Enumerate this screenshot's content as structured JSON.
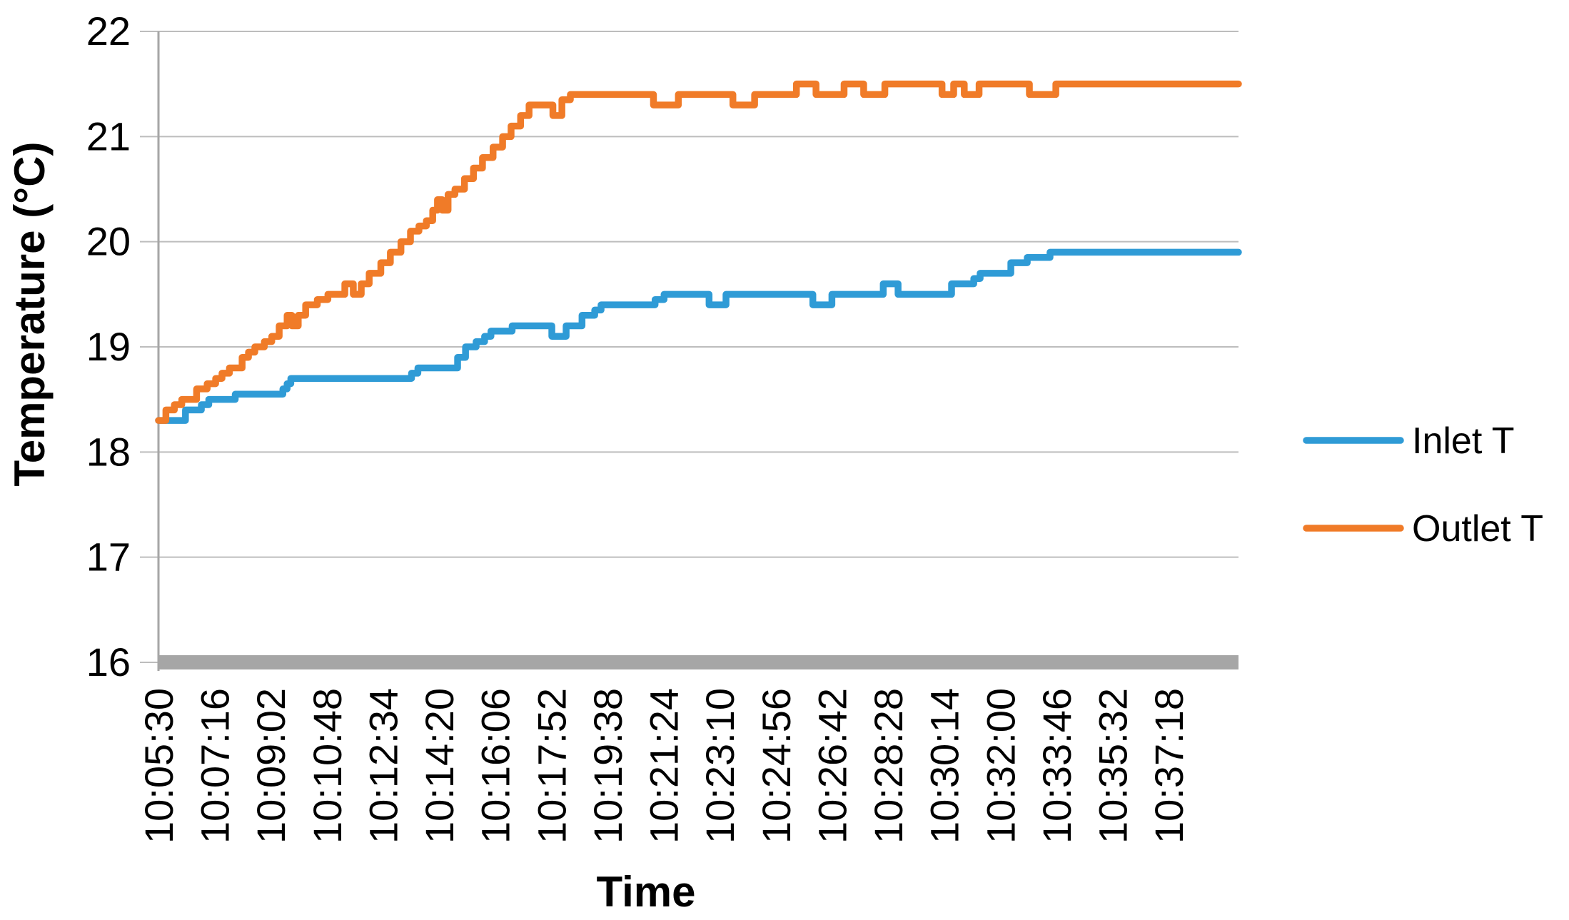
{
  "chart_data": {
    "type": "line",
    "title": "",
    "xlabel": "Time",
    "ylabel": "Temperature (°C)",
    "ylim": [
      16,
      22
    ],
    "y_ticks": [
      22,
      21,
      20,
      19,
      18,
      17,
      16
    ],
    "x_ticks": [
      "10:05:30",
      "10:07:16",
      "10:09:02",
      "10:10:48",
      "10:12:34",
      "10:14:20",
      "10:16:06",
      "10:17:52",
      "10:19:38",
      "10:21:24",
      "10:23:10",
      "10:24:56",
      "10:26:42",
      "10:28:28",
      "10:30:14",
      "10:32:00",
      "10:33:46",
      "10:35:32",
      "10:37:18"
    ],
    "x_tick_interval_seconds": 106,
    "x_start_time": "10:05:30",
    "x_total_seconds": 2040,
    "grid": true,
    "legend_position": "right-middle",
    "line_interpolation": "step-after",
    "series": [
      {
        "name": "Inlet T",
        "color": "#2F9BD6",
        "points": [
          [
            0,
            18.3
          ],
          [
            51,
            18.4
          ],
          [
            81,
            18.45
          ],
          [
            95,
            18.5
          ],
          [
            145,
            18.55
          ],
          [
            235,
            18.6
          ],
          [
            243,
            18.65
          ],
          [
            250,
            18.7
          ],
          [
            478,
            18.75
          ],
          [
            490,
            18.8
          ],
          [
            565,
            18.9
          ],
          [
            580,
            19.0
          ],
          [
            600,
            19.05
          ],
          [
            616,
            19.1
          ],
          [
            628,
            19.15
          ],
          [
            668,
            19.2
          ],
          [
            743,
            19.1
          ],
          [
            770,
            19.2
          ],
          [
            800,
            19.3
          ],
          [
            824,
            19.35
          ],
          [
            836,
            19.4
          ],
          [
            938,
            19.45
          ],
          [
            955,
            19.5
          ],
          [
            1040,
            19.4
          ],
          [
            1072,
            19.5
          ],
          [
            1236,
            19.4
          ],
          [
            1272,
            19.5
          ],
          [
            1369,
            19.6
          ],
          [
            1397,
            19.5
          ],
          [
            1498,
            19.6
          ],
          [
            1540,
            19.65
          ],
          [
            1552,
            19.7
          ],
          [
            1610,
            19.8
          ],
          [
            1641,
            19.85
          ],
          [
            1684,
            19.9
          ],
          [
            2040,
            19.9
          ]
        ]
      },
      {
        "name": "Outlet T",
        "color": "#F07B28",
        "points": [
          [
            0,
            18.3
          ],
          [
            14,
            18.4
          ],
          [
            30,
            18.45
          ],
          [
            44,
            18.5
          ],
          [
            72,
            18.6
          ],
          [
            92,
            18.65
          ],
          [
            108,
            18.7
          ],
          [
            120,
            18.75
          ],
          [
            134,
            18.8
          ],
          [
            158,
            18.9
          ],
          [
            170,
            18.95
          ],
          [
            182,
            19.0
          ],
          [
            200,
            19.05
          ],
          [
            214,
            19.1
          ],
          [
            228,
            19.2
          ],
          [
            243,
            19.3
          ],
          [
            252,
            19.2
          ],
          [
            264,
            19.3
          ],
          [
            278,
            19.4
          ],
          [
            300,
            19.45
          ],
          [
            320,
            19.5
          ],
          [
            352,
            19.6
          ],
          [
            368,
            19.5
          ],
          [
            383,
            19.6
          ],
          [
            398,
            19.7
          ],
          [
            420,
            19.8
          ],
          [
            438,
            19.9
          ],
          [
            458,
            20.0
          ],
          [
            476,
            20.1
          ],
          [
            492,
            20.15
          ],
          [
            506,
            20.2
          ],
          [
            518,
            20.3
          ],
          [
            527,
            20.4
          ],
          [
            536,
            20.3
          ],
          [
            547,
            20.45
          ],
          [
            560,
            20.5
          ],
          [
            578,
            20.6
          ],
          [
            595,
            20.7
          ],
          [
            612,
            20.8
          ],
          [
            632,
            20.9
          ],
          [
            650,
            21.0
          ],
          [
            666,
            21.1
          ],
          [
            684,
            21.2
          ],
          [
            700,
            21.3
          ],
          [
            745,
            21.2
          ],
          [
            762,
            21.35
          ],
          [
            778,
            21.4
          ],
          [
            935,
            21.3
          ],
          [
            982,
            21.4
          ],
          [
            1085,
            21.3
          ],
          [
            1126,
            21.4
          ],
          [
            1205,
            21.5
          ],
          [
            1242,
            21.4
          ],
          [
            1295,
            21.5
          ],
          [
            1332,
            21.4
          ],
          [
            1372,
            21.5
          ],
          [
            1480,
            21.4
          ],
          [
            1502,
            21.5
          ],
          [
            1522,
            21.4
          ],
          [
            1550,
            21.5
          ],
          [
            1645,
            21.4
          ],
          [
            1695,
            21.5
          ],
          [
            2040,
            21.5
          ]
        ]
      }
    ]
  },
  "colors": {
    "axis_line": "#A6A6A6",
    "baseline_bar": "#A6A6A6",
    "gridline": "#BDBDBD",
    "text": "#000000",
    "background": "#FFFFFF"
  }
}
